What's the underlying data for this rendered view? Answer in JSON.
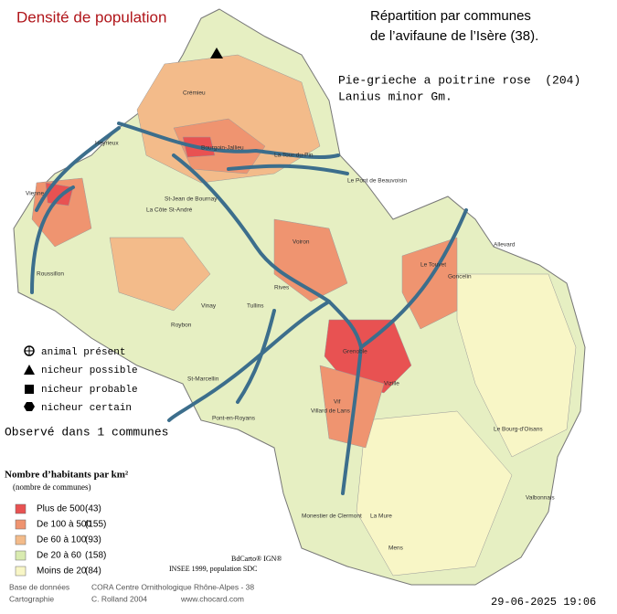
{
  "header": {
    "map_title": "Densité de population",
    "title_line1": "Répartition par communes",
    "title_line2": "de l’avifaune de l’Isère (38).",
    "species": "Pie-grieche a poitrine rose  (204)",
    "latin": "Lanius minor Gm."
  },
  "status_legend": [
    "animal présent",
    "nicheur possible",
    "nicheur probable",
    "nicheur certain"
  ],
  "observed": "Observé dans 1 communes",
  "density_legend": {
    "title": "Nombre d’habitants par km²",
    "subtitle": "(nombre de communes)",
    "classes": [
      {
        "label": "Plus de 500",
        "count": "(43)"
      },
      {
        "label": "De 100 à 500",
        "count": "(155)"
      },
      {
        "label": "De 60 à 100",
        "count": "(93)"
      },
      {
        "label": "De 20 à 60",
        "count": "(158)"
      },
      {
        "label": "Moins de 20",
        "count": "(84)"
      }
    ]
  },
  "sources": [
    "BdCarto® IGN®",
    "INSEE 1999, population SDC"
  ],
  "credits": {
    "db_label": "Base de données",
    "db_value": "CORA Centre Ornithologique Rhône-Alpes - 38",
    "carto_label": "Cartographie",
    "carto_value": "C. Rolland 2004",
    "site": "www.chocard.com"
  },
  "timestamp": "29-06-2025 19:06",
  "map": {
    "places": [
      "Crémieu",
      "Heyrieux",
      "Vienne",
      "Bourgoin-Jallieu",
      "Le Pont de Beauvoisin",
      "La Tour-du-Pin",
      "Roussillon",
      "La Côte St-André",
      "St-Jean de Bournay",
      "Rives",
      "Voiron",
      "Tullins",
      "Vinay",
      "Roybon",
      "St-Marcellin",
      "Pont-en-Royans",
      "Villard de Lans",
      "Grenoble",
      "Vif",
      "Vizille",
      "Allevard",
      "Goncelin",
      "Le Touvet",
      "Monestier de Clermont",
      "La Mure",
      "Valbonnais",
      "Mens",
      "Le Bourg-d'Oisans"
    ]
  }
}
